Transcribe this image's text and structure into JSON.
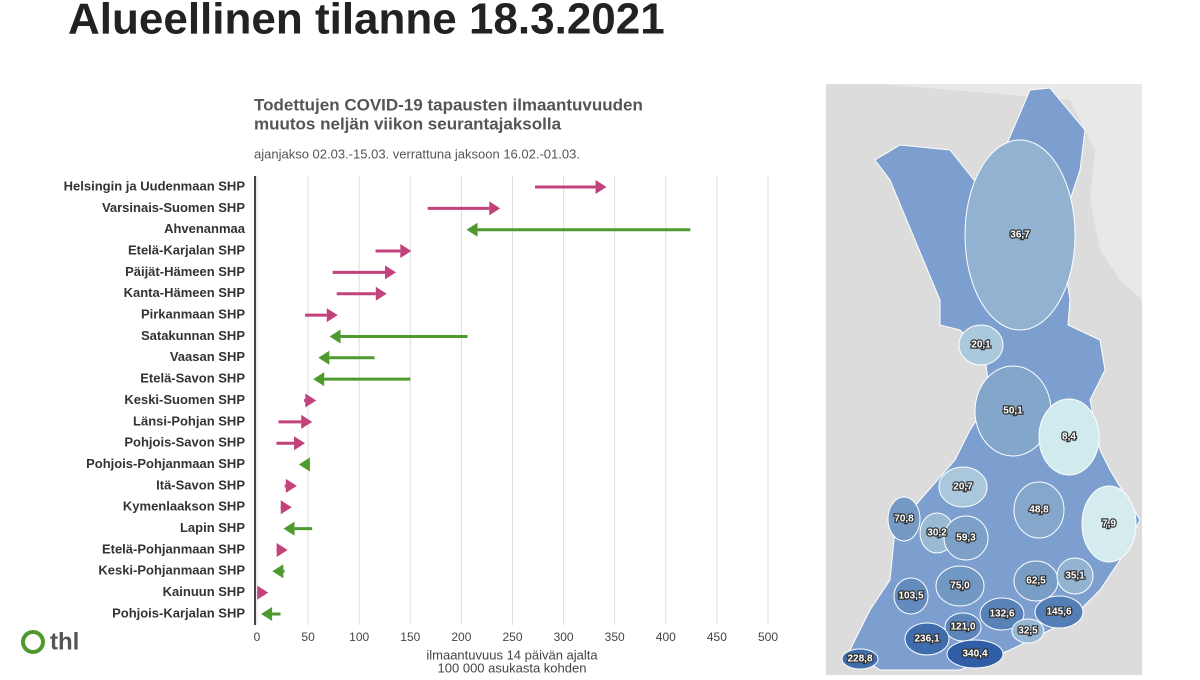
{
  "header": {
    "title": "Alueellinen tilanne 18.3.2021",
    "logo": "thl"
  },
  "chart_data": [
    {
      "type": "arrow",
      "title": [
        "Todettujen COVID-19 tapausten ilmaantuvuuden",
        "muutos neljän viikon seurantajaksolla"
      ],
      "subtitle": "ajanjakso 02.03.-15.03. verrattuna jaksoon 16.02.-01.03.",
      "xlabel": [
        "ilmaantuvuus 14 päivän ajalta",
        "100 000 asukasta kohden"
      ],
      "categories": [
        "Helsingin ja Uudenmaan SHP",
        "Varsinais-Suomen SHP",
        "Ahvenanmaa",
        "Etelä-Karjalan SHP",
        "Päijät-Hämeen SHP",
        "Kanta-Hämeen SHP",
        "Pirkanmaan SHP",
        "Satakunnan SHP",
        "Vaasan SHP",
        "Etelä-Savon SHP",
        "Keski-Suomen SHP",
        "Länsi-Pohjan SHP",
        "Pohjois-Savon SHP",
        "Pohjois-Pohjanmaan SHP",
        "Itä-Savon SHP",
        "Kymenlaakson SHP",
        "Lapin SHP",
        "Etelä-Pohjanmaan SHP",
        "Keski-Pohjanmaan SHP",
        "Kainuun SHP",
        "Pohjois-Karjalan SHP"
      ],
      "start_values": [
        272,
        167,
        424,
        116,
        74,
        78,
        47,
        206,
        115,
        150,
        46,
        21,
        19,
        52,
        27,
        23,
        54,
        19,
        27,
        1,
        23
      ],
      "end_values": [
        342,
        238,
        205,
        151,
        136,
        127,
        79,
        71,
        60,
        55,
        58,
        54,
        47,
        41,
        39,
        34,
        26,
        30,
        15,
        11,
        4
      ],
      "increase_color": "#c2427b",
      "decrease_color": "#4e9a2e",
      "xlim": [
        0,
        500
      ],
      "xticks": [
        0,
        50,
        100,
        150,
        200,
        250,
        300,
        350,
        400,
        450,
        500
      ],
      "grid": true
    },
    {
      "type": "map",
      "values": [
        36.7,
        20.1,
        50.1,
        8.4,
        20.7,
        48.8,
        70.8,
        30.2,
        59.3,
        7.9,
        62.5,
        35.1,
        103.5,
        75.0,
        132.6,
        145.6,
        121.0,
        32.5,
        236.1,
        340.4,
        228.8
      ],
      "value_labels": [
        "36,7",
        "20,1",
        "50,1",
        "8,4",
        "20,7",
        "48,8",
        "70,8",
        "30,2",
        "59,3",
        "7,9",
        "62,5",
        "35,1",
        "103,5",
        "75,0",
        "132,6",
        "145,6",
        "121,0",
        "32,5",
        "236,1",
        "340,4",
        "228,8"
      ],
      "low_color": "#d4ecee",
      "high_color": "#2f5ea6"
    }
  ]
}
